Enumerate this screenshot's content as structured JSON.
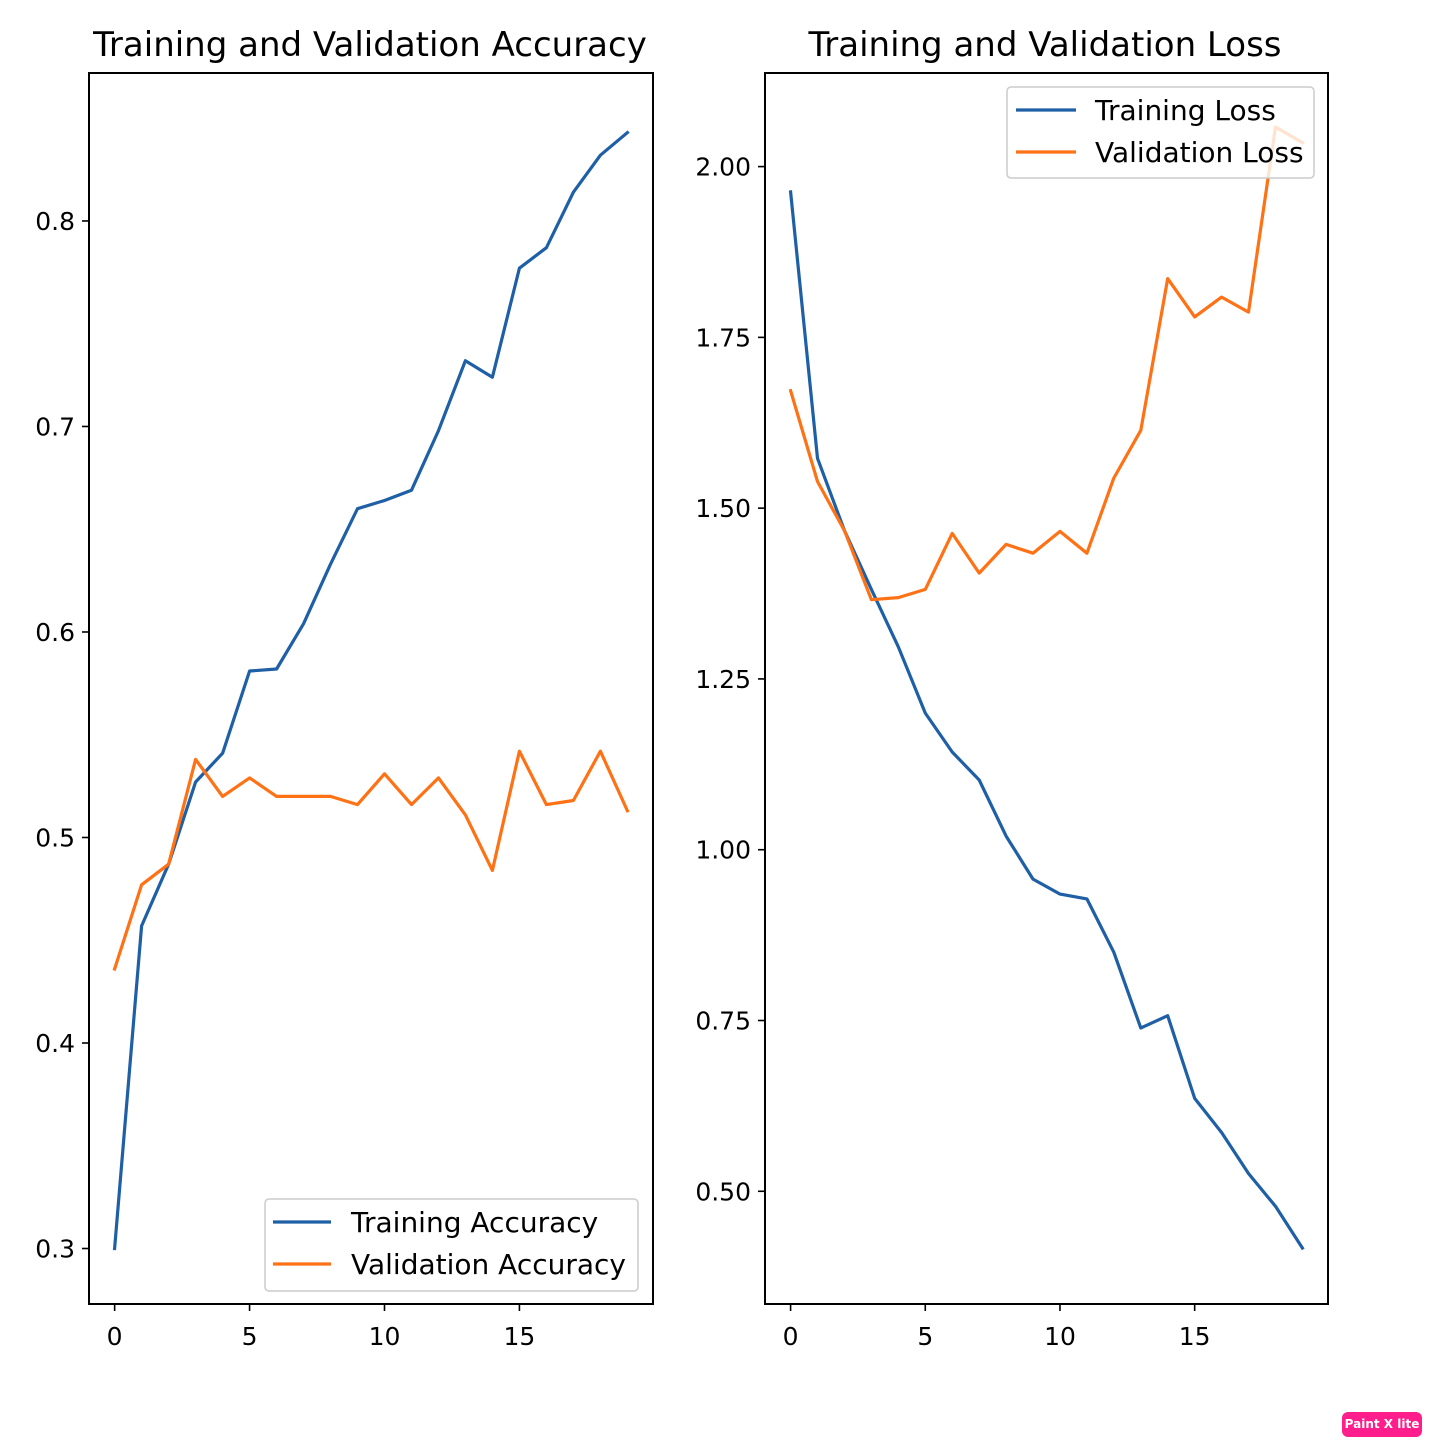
{
  "colors": {
    "training": "#1f5fa6",
    "validation": "#ff7115",
    "badge": "#ff1e8c"
  },
  "badge": {
    "text": "Paint X lite"
  },
  "chart_data": [
    {
      "type": "line",
      "title": "Training and Validation Accuracy",
      "xlabel": "",
      "ylabel": "",
      "x": [
        0,
        1,
        2,
        3,
        4,
        5,
        6,
        7,
        8,
        9,
        10,
        11,
        12,
        13,
        14,
        15,
        16,
        17,
        18,
        19
      ],
      "xlim": [
        -0.95,
        19.95
      ],
      "ylim": [
        0.273,
        0.872
      ],
      "xticks": [
        0,
        5,
        10,
        15
      ],
      "xtick_labels": [
        "0",
        "5",
        "10",
        "15"
      ],
      "yticks": [
        0.3,
        0.4,
        0.5,
        0.6,
        0.7,
        0.8
      ],
      "ytick_labels": [
        "0.3",
        "0.4",
        "0.5",
        "0.6",
        "0.7",
        "0.8"
      ],
      "grid": false,
      "legend": "lower right",
      "series": [
        {
          "name": "Training Accuracy",
          "color": "#1f5fa6",
          "values": [
            0.3,
            0.457,
            0.487,
            0.527,
            0.541,
            0.581,
            0.582,
            0.604,
            0.633,
            0.66,
            0.664,
            0.669,
            0.698,
            0.732,
            0.724,
            0.777,
            0.787,
            0.814,
            0.832,
            0.843
          ]
        },
        {
          "name": "Validation Accuracy",
          "color": "#ff7115",
          "values": [
            0.436,
            0.477,
            0.487,
            0.538,
            0.52,
            0.529,
            0.52,
            0.52,
            0.52,
            0.516,
            0.531,
            0.516,
            0.529,
            0.511,
            0.484,
            0.542,
            0.516,
            0.518,
            0.542,
            0.513
          ]
        }
      ]
    },
    {
      "type": "line",
      "title": "Training and Validation Loss",
      "xlabel": "",
      "ylabel": "",
      "x": [
        0,
        1,
        2,
        3,
        4,
        5,
        6,
        7,
        8,
        9,
        10,
        11,
        12,
        13,
        14,
        15,
        16,
        17,
        18,
        19
      ],
      "xlim": [
        -0.95,
        19.95
      ],
      "ylim": [
        0.335,
        2.137
      ],
      "xticks": [
        0,
        5,
        10,
        15
      ],
      "xtick_labels": [
        "0",
        "5",
        "10",
        "15"
      ],
      "yticks": [
        0.5,
        0.75,
        1.0,
        1.25,
        1.5,
        1.75,
        2.0
      ],
      "ytick_labels": [
        "0.50",
        "0.75",
        "1.00",
        "1.25",
        "1.50",
        "1.75",
        "2.00"
      ],
      "grid": false,
      "legend": "upper right",
      "series": [
        {
          "name": "Training Loss",
          "color": "#1f5fa6",
          "values": [
            1.963,
            1.573,
            1.467,
            1.381,
            1.297,
            1.2,
            1.143,
            1.102,
            1.02,
            0.957,
            0.935,
            0.928,
            0.85,
            0.739,
            0.757,
            0.636,
            0.586,
            0.526,
            0.478,
            0.417
          ]
        },
        {
          "name": "Validation Loss",
          "color": "#ff7115",
          "values": [
            1.672,
            1.539,
            1.467,
            1.366,
            1.369,
            1.381,
            1.463,
            1.405,
            1.447,
            1.434,
            1.466,
            1.434,
            1.544,
            1.614,
            1.836,
            1.78,
            1.809,
            1.787,
            2.058,
            2.035
          ]
        }
      ]
    }
  ]
}
